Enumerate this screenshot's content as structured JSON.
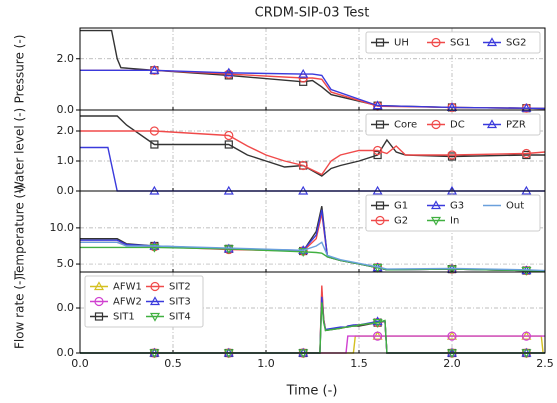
{
  "chart_data": {
    "type": "line",
    "title": "CRDM-SIP-03 Test",
    "xlabel": "Time (-)",
    "xlim": [
      0,
      2.5
    ],
    "xticks": [
      {
        "value": 0,
        "label": "0.0"
      },
      {
        "value": 0.5,
        "label": "0.5"
      },
      {
        "value": 1.0,
        "label": "1.0"
      },
      {
        "value": 1.5,
        "label": "1.5"
      },
      {
        "value": 2.0,
        "label": "2.0"
      },
      {
        "value": 2.5,
        "label": "2.5"
      }
    ],
    "grid": true,
    "panels": [
      {
        "ylabel": "Pressure (-)",
        "ylabel_color": "#000000",
        "ylim": [
          0,
          3.2
        ],
        "yticks": [
          {
            "value": 0,
            "label": "0.0"
          },
          {
            "value": 2,
            "label": "2.0"
          }
        ],
        "legend": "upper right",
        "legend_rows": 1,
        "x": [
          0,
          0.17,
          0.2,
          0.22,
          0.4,
          0.8,
          1.2,
          1.25,
          1.3,
          1.35,
          1.6,
          2.0,
          2.4,
          2.5
        ],
        "series": [
          {
            "name": "UH",
            "color": "#333333",
            "marker": "s",
            "values": [
              3.1,
              3.1,
              2.0,
              1.65,
              1.55,
              1.35,
              1.1,
              1.15,
              0.9,
              0.6,
              0.17,
              0.1,
              0.07,
              0.06
            ]
          },
          {
            "name": "SG1",
            "color": "#f04a4a",
            "marker": "o",
            "values": [
              1.55,
              1.55,
              1.55,
              1.55,
              1.55,
              1.4,
              1.25,
              1.25,
              1.2,
              0.7,
              0.15,
              0.1,
              0.07,
              0.06
            ]
          },
          {
            "name": "SG2",
            "color": "#3a3adc",
            "marker": "^",
            "values": [
              1.55,
              1.55,
              1.55,
              1.55,
              1.55,
              1.45,
              1.4,
              1.4,
              1.35,
              0.8,
              0.17,
              0.1,
              0.07,
              0.06
            ]
          }
        ]
      },
      {
        "ylabel": "Water level (-)",
        "ylabel_color": "#e02020",
        "ylim": [
          0,
          2.7
        ],
        "yticks": [
          {
            "value": 0,
            "label": "0.0"
          },
          {
            "value": 1,
            "label": "1.0"
          },
          {
            "value": 2,
            "label": "2.0"
          }
        ],
        "legend": "upper right",
        "legend_rows": 1,
        "x": [
          0,
          0.15,
          0.2,
          0.25,
          0.4,
          0.8,
          0.9,
          1.0,
          1.1,
          1.2,
          1.3,
          1.35,
          1.4,
          1.5,
          1.6,
          1.65,
          1.7,
          1.75,
          2.0,
          2.4,
          2.5
        ],
        "series": [
          {
            "name": "Core",
            "color": "#333333",
            "marker": "s",
            "values": [
              2.5,
              2.5,
              2.5,
              2.2,
              1.55,
              1.55,
              1.2,
              1.0,
              0.8,
              0.85,
              0.5,
              0.75,
              0.85,
              1.0,
              1.2,
              1.7,
              1.3,
              1.2,
              1.15,
              1.2,
              1.2
            ]
          },
          {
            "name": "DC",
            "color": "#f04a4a",
            "marker": "o",
            "values": [
              2.0,
              2.0,
              2.0,
              2.0,
              2.0,
              1.85,
              1.5,
              1.2,
              1.0,
              0.85,
              0.55,
              1.0,
              1.2,
              1.35,
              1.35,
              1.25,
              1.5,
              1.2,
              1.2,
              1.25,
              1.3
            ]
          },
          {
            "name": "PZR",
            "color": "#3a3adc",
            "marker": "^",
            "values": [
              1.45,
              1.45,
              0,
              0,
              0,
              0,
              0,
              0,
              0,
              0,
              0,
              0,
              0,
              0,
              0,
              0,
              0,
              0,
              0,
              0,
              0
            ]
          }
        ]
      },
      {
        "ylabel": "Temperature (-)",
        "ylabel_color": "#2020e0",
        "ylim": [
          3.9,
          15.1
        ],
        "yticks": [
          {
            "value": 5,
            "label": "5.0"
          },
          {
            "value": 10,
            "label": "10.0"
          }
        ],
        "legend": "upper right",
        "legend_rows": 2,
        "x": [
          0,
          0.2,
          0.25,
          0.4,
          0.8,
          1.2,
          1.27,
          1.3,
          1.33,
          1.4,
          1.5,
          1.6,
          1.65,
          2.0,
          2.4,
          2.5
        ],
        "series": [
          {
            "name": "G1",
            "color": "#333333",
            "marker": "s",
            "values": [
              8.5,
              8.5,
              7.8,
              7.5,
              7.1,
              6.8,
              9.5,
              13.0,
              6.0,
              5.5,
              5.0,
              4.5,
              4.2,
              4.3,
              4.1,
              4.0
            ]
          },
          {
            "name": "G2",
            "color": "#f04a4a",
            "marker": "o",
            "values": [
              8.0,
              8.0,
              7.6,
              7.4,
              7.0,
              6.8,
              8.5,
              12.0,
              6.0,
              5.5,
              5.0,
              4.5,
              4.2,
              4.3,
              4.1,
              4.0
            ]
          },
          {
            "name": "G3",
            "color": "#3a3adc",
            "marker": "^",
            "values": [
              8.3,
              8.3,
              7.7,
              7.5,
              7.1,
              6.9,
              9.0,
              12.5,
              6.0,
              5.5,
              5.0,
              4.5,
              4.2,
              4.3,
              4.1,
              4.0
            ]
          },
          {
            "name": "In",
            "color": "#40b040",
            "marker": "v",
            "values": [
              7.3,
              7.3,
              7.3,
              7.3,
              7.1,
              6.7,
              6.6,
              6.5,
              6.0,
              5.5,
              5.0,
              4.5,
              4.2,
              4.3,
              4.1,
              4.0
            ]
          },
          {
            "name": "Out",
            "color": "#6aa0dc",
            "marker": "",
            "values": [
              8.0,
              8.0,
              7.5,
              7.5,
              7.2,
              6.9,
              7.5,
              8.0,
              6.2,
              5.6,
              5.1,
              4.6,
              4.3,
              4.4,
              4.2,
              4.1
            ]
          }
        ]
      },
      {
        "ylabel": "Flow rate (-)",
        "ylabel_color": "#d020d0",
        "ylim": [
          0,
          0.072
        ],
        "yticks": [
          {
            "value": 0,
            "label": "0.0"
          },
          {
            "value": 0.04,
            "label": "0.0"
          }
        ],
        "legend": "upper left",
        "legend_rows": 3,
        "x": [
          0,
          0.4,
          0.8,
          1.2,
          1.29,
          1.3,
          1.31,
          1.32,
          1.4,
          1.43,
          1.44,
          1.47,
          1.48,
          1.5,
          1.6,
          1.64,
          1.65,
          2.0,
          2.4,
          2.48,
          2.49,
          2.5
        ],
        "series": [
          {
            "name": "AFW1",
            "color": "#d4c020",
            "marker": "^",
            "values": [
              0,
              0,
              0,
              0,
              0,
              0,
              0,
              0,
              0,
              0,
              0,
              0,
              0.015,
              0.015,
              0.015,
              0.015,
              0.015,
              0.015,
              0.015,
              0.015,
              0,
              0
            ]
          },
          {
            "name": "AFW2",
            "color": "#d040d0",
            "marker": "o",
            "values": [
              0,
              0,
              0,
              0,
              0,
              0,
              0,
              0,
              0,
              0,
              0.015,
              0.015,
              0.015,
              0.015,
              0.015,
              0.015,
              0.015,
              0.015,
              0.015,
              0.015,
              0.015,
              0.015
            ]
          },
          {
            "name": "SIT1",
            "color": "#333333",
            "marker": "s",
            "values": [
              0,
              0,
              0,
              0,
              0,
              0.055,
              0.03,
              0.02,
              0.022,
              0.023,
              0.023,
              0.024,
              0.024,
              0.024,
              0.027,
              0.028,
              0,
              0,
              0,
              0,
              0,
              0
            ]
          },
          {
            "name": "SIT2",
            "color": "#f04a4a",
            "marker": "o",
            "values": [
              0,
              0,
              0,
              0,
              0,
              0.06,
              0.03,
              0.021,
              0.022,
              0.023,
              0.024,
              0.024,
              0.025,
              0.025,
              0.027,
              0.028,
              0,
              0,
              0,
              0,
              0,
              0
            ]
          },
          {
            "name": "SIT3",
            "color": "#3a3adc",
            "marker": "^",
            "values": [
              0,
              0,
              0,
              0,
              0,
              0.05,
              0.028,
              0.021,
              0.023,
              0.023,
              0.024,
              0.025,
              0.025,
              0.025,
              0.028,
              0.028,
              0,
              0,
              0,
              0,
              0,
              0
            ]
          },
          {
            "name": "SIT4",
            "color": "#40b040",
            "marker": "v",
            "values": [
              0,
              0,
              0,
              0,
              0,
              0.045,
              0.027,
              0.02,
              0.022,
              0.023,
              0.023,
              0.024,
              0.024,
              0.025,
              0.027,
              0.029,
              0,
              0,
              0,
              0,
              0,
              0
            ]
          }
        ]
      }
    ]
  }
}
